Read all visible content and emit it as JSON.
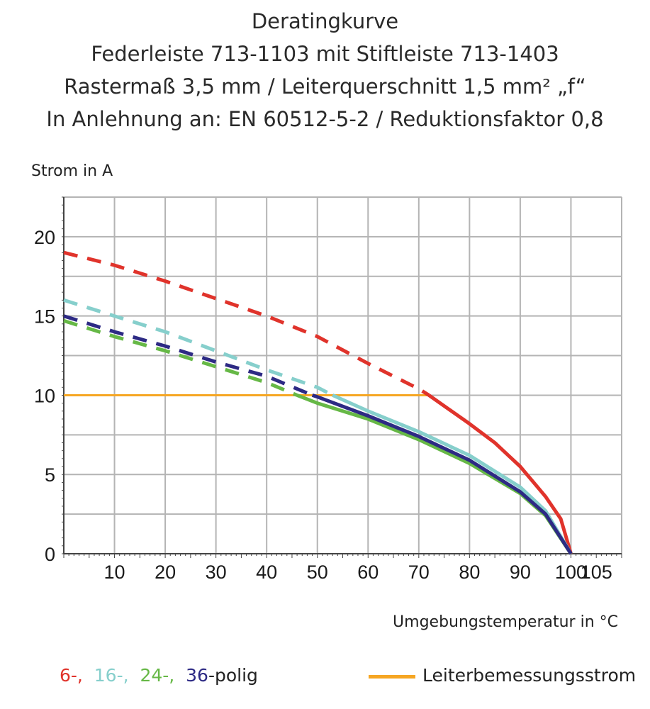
{
  "title_lines": [
    "Deratingkurve",
    "Federleiste 713-1103 mit Stiftleiste 713-1403",
    "Rastermaß 3,5 mm / Leiterquerschnitt 1,5 mm² „f“",
    "In Anlehnung an: EN 60512-5-2 / Reduktionsfaktor 0,8"
  ],
  "chart_data": {
    "type": "line",
    "ylabel": "Strom in A",
    "xlabel": "Umgebungstemperatur in °C",
    "xlim": [
      0,
      110
    ],
    "ylim": [
      0,
      22.5
    ],
    "x_ticks": [
      10,
      20,
      30,
      40,
      50,
      60,
      70,
      80,
      90,
      100,
      105
    ],
    "y_ticks": [
      0,
      5,
      10,
      15,
      20
    ],
    "grid": true,
    "x_grid_step": 10,
    "y_grid_step": 2.5,
    "dashed_above": 10,
    "series": [
      {
        "name": "6-",
        "color": "#e0332b",
        "x": [
          0,
          10,
          20,
          30,
          40,
          50,
          60,
          70,
          72,
          80,
          85,
          90,
          95,
          98,
          100
        ],
        "y": [
          19,
          18.2,
          17.2,
          16.1,
          15.0,
          13.7,
          12.0,
          10.4,
          10,
          8.2,
          7.0,
          5.5,
          3.6,
          2.2,
          0
        ]
      },
      {
        "name": "16-",
        "color": "#86cfcc",
        "x": [
          0,
          10,
          20,
          30,
          40,
          50,
          53,
          60,
          70,
          80,
          90,
          95,
          100
        ],
        "y": [
          16,
          15,
          14,
          12.8,
          11.6,
          10.5,
          10,
          9.0,
          7.7,
          6.2,
          4.2,
          2.7,
          0
        ]
      },
      {
        "name": "24-",
        "color": "#66b846",
        "x": [
          0,
          10,
          20,
          30,
          40,
          46,
          50,
          60,
          70,
          80,
          90,
          95,
          100
        ],
        "y": [
          14.7,
          13.7,
          12.8,
          11.8,
          10.8,
          10,
          9.5,
          8.5,
          7.2,
          5.7,
          3.8,
          2.4,
          0
        ]
      },
      {
        "name": "36-polig",
        "color": "#2d2a84",
        "x": [
          0,
          10,
          20,
          30,
          40,
          49,
          50,
          60,
          70,
          80,
          90,
          95,
          100
        ],
        "y": [
          15,
          14,
          13.1,
          12.1,
          11.2,
          10,
          9.9,
          8.7,
          7.4,
          5.9,
          3.9,
          2.5,
          0
        ]
      }
    ],
    "reference_line": {
      "name": "Leiterbemessungsstrom",
      "color": "#f6a623",
      "y": 10,
      "x": [
        0,
        72
      ]
    }
  },
  "legend": {
    "items": [
      {
        "text": "6-,",
        "color": "#e0332b"
      },
      {
        "text": "16-,",
        "color": "#86cfcc"
      },
      {
        "text": "24-,",
        "color": "#66b846"
      },
      {
        "text": "36",
        "color": "#2d2a84"
      },
      {
        "text": "-polig",
        "color": "#222222"
      }
    ],
    "reference_label": "Leiterbemessungsstrom"
  }
}
